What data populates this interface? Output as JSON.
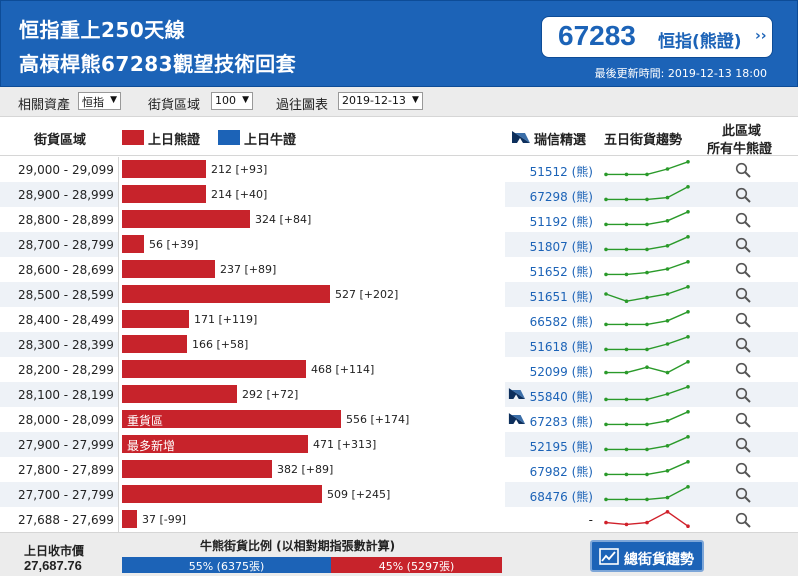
{
  "header": {
    "title_line1": "恒指重上250天線",
    "title_line2": "高槓桿熊67283觀望技術回套",
    "quote_value": "67283",
    "quote_label": "恒指(熊證)",
    "quote_arrow": "››",
    "update_time": "最後更新時間: 2019-12-13 18:00"
  },
  "filters": {
    "asset_label": "相關資產",
    "asset_value": "恒指",
    "zone_label": "街貨區域",
    "zone_value": "100",
    "history_label": "過往圖表",
    "history_value": "2019-12-13"
  },
  "columns": {
    "zone": "街貨區域",
    "bear_legend": "上日熊證",
    "bull_legend": "上日牛證",
    "top_pick": "瑞信精選",
    "trend": "五日街貨趨勢",
    "all_line1": "此區域",
    "all_line2": "所有牛熊證"
  },
  "colors": {
    "bear": "#c7232b",
    "bull": "#1c63b7",
    "trend_up": "#2a9a2a",
    "trend_down": "#d0202a"
  },
  "rows": [
    {
      "range": "29,000 - 29,099",
      "value": 212,
      "label": "212 [+93]",
      "tag": "",
      "pick": "51512 (熊)",
      "ubs": false,
      "trend": [
        2,
        2,
        2,
        5,
        9
      ],
      "trend_color": "green"
    },
    {
      "range": "28,900 - 28,999",
      "value": 214,
      "label": "214 [+40]",
      "tag": "",
      "pick": "67298 (熊)",
      "ubs": false,
      "trend": [
        2,
        2,
        2,
        3,
        9
      ],
      "trend_color": "green"
    },
    {
      "range": "28,800 - 28,899",
      "value": 324,
      "label": "324 [+84]",
      "tag": "",
      "pick": "51192 (熊)",
      "ubs": false,
      "trend": [
        2,
        2,
        2,
        4,
        9
      ],
      "trend_color": "green"
    },
    {
      "range": "28,700 - 28,799",
      "value": 56,
      "label": "56 [+39]",
      "tag": "",
      "pick": "51807 (熊)",
      "ubs": false,
      "trend": [
        2,
        2,
        2,
        4,
        9
      ],
      "trend_color": "green"
    },
    {
      "range": "28,600 - 28,699",
      "value": 237,
      "label": "237 [+89]",
      "tag": "",
      "pick": "51652 (熊)",
      "ubs": false,
      "trend": [
        2,
        2,
        3,
        5,
        9
      ],
      "trend_color": "green"
    },
    {
      "range": "28,500 - 28,599",
      "value": 527,
      "label": "527 [+202]",
      "tag": "",
      "pick": "51651 (熊)",
      "ubs": false,
      "trend": [
        5,
        1,
        3,
        5,
        9
      ],
      "trend_color": "green"
    },
    {
      "range": "28,400 - 28,499",
      "value": 171,
      "label": "171 [+119]",
      "tag": "",
      "pick": "66582 (熊)",
      "ubs": false,
      "trend": [
        2,
        2,
        2,
        4,
        9
      ],
      "trend_color": "green"
    },
    {
      "range": "28,300 - 28,399",
      "value": 166,
      "label": "166 [+58]",
      "tag": "",
      "pick": "51618 (熊)",
      "ubs": false,
      "trend": [
        2,
        2,
        2,
        5,
        9
      ],
      "trend_color": "green"
    },
    {
      "range": "28,200 - 28,299",
      "value": 468,
      "label": "468 [+114]",
      "tag": "",
      "pick": "52099 (熊)",
      "ubs": false,
      "trend": [
        3,
        3,
        6,
        3,
        9
      ],
      "trend_color": "green"
    },
    {
      "range": "28,100 - 28,199",
      "value": 292,
      "label": "292 [+72]",
      "tag": "",
      "pick": "55840 (熊)",
      "ubs": true,
      "trend": [
        2,
        2,
        2,
        5,
        9
      ],
      "trend_color": "green"
    },
    {
      "range": "28,000 - 28,099",
      "value": 556,
      "label": "556 [+174]",
      "tag": "重貨區",
      "pick": "67283 (熊)",
      "ubs": true,
      "trend": [
        2,
        2,
        2,
        4,
        9
      ],
      "trend_color": "green"
    },
    {
      "range": "27,900 - 27,999",
      "value": 471,
      "label": "471 [+313]",
      "tag": "最多新增",
      "pick": "52195 (熊)",
      "ubs": false,
      "trend": [
        2,
        2,
        2,
        4,
        9
      ],
      "trend_color": "green"
    },
    {
      "range": "27,800 - 27,899",
      "value": 382,
      "label": "382 [+89]",
      "tag": "",
      "pick": "67982 (熊)",
      "ubs": false,
      "trend": [
        2,
        2,
        2,
        4,
        9
      ],
      "trend_color": "green"
    },
    {
      "range": "27,700 - 27,799",
      "value": 509,
      "label": "509 [+245]",
      "tag": "",
      "pick": "68476 (熊)",
      "ubs": false,
      "trend": [
        2,
        2,
        2,
        3,
        9
      ],
      "trend_color": "green"
    },
    {
      "range": "27,688 - 27,699",
      "value": 37,
      "label": "37 [-99]",
      "tag": "",
      "pick": "-",
      "ubs": false,
      "trend": [
        3,
        2,
        3,
        9,
        1
      ],
      "trend_color": "red"
    }
  ],
  "bar_scale_max": 556,
  "footer": {
    "close_label": "上日收市價",
    "close_value": "27,687.76",
    "ratio_title": "牛熊街貨比例 (以相對期指張數計算)",
    "bull_pct": 55,
    "bull_text": "55% (6375張)",
    "bear_pct": 45,
    "bear_text": "45% (5297張)",
    "trend_button": "總街貨趨勢"
  }
}
